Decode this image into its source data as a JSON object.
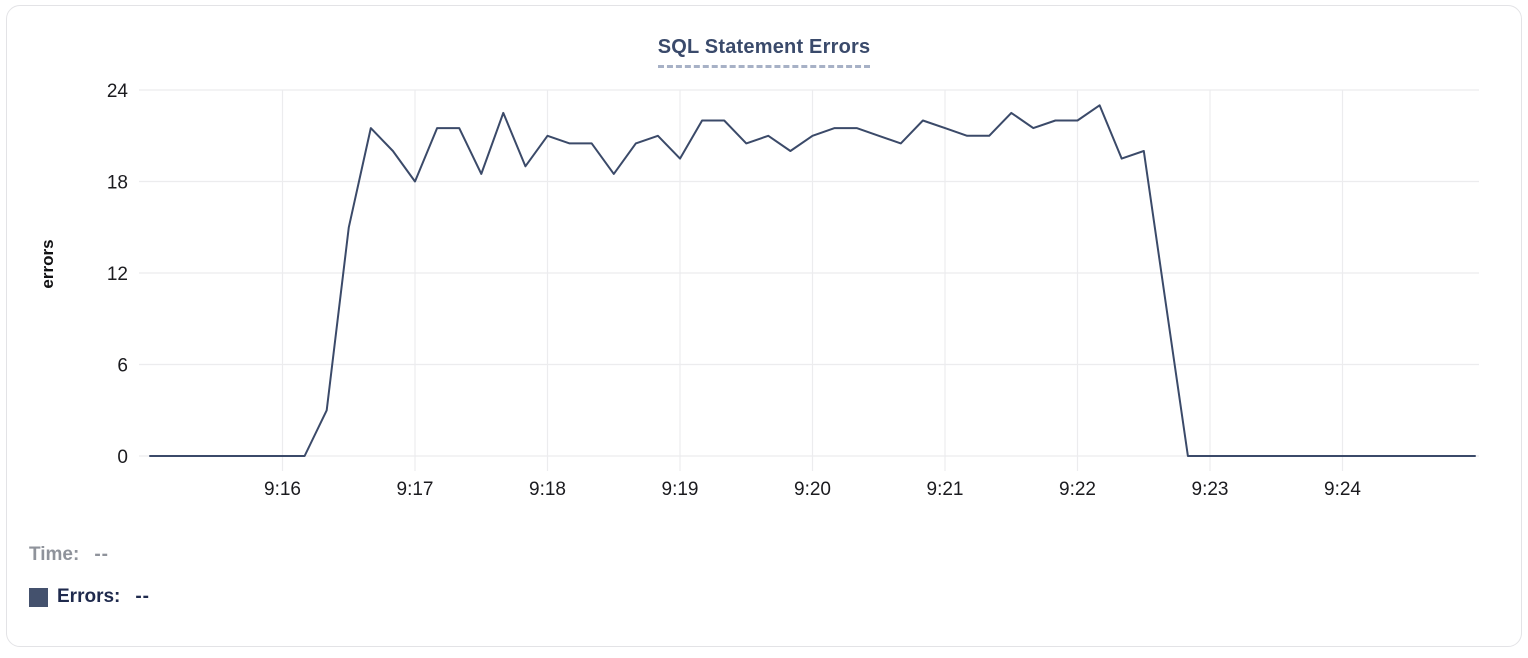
{
  "chart_title": "SQL Statement Errors",
  "colors": {
    "line": "#3b4a69",
    "swatch": "#44516d",
    "title": "#3a4a6b"
  },
  "legend": {
    "time_label": "Time:",
    "time_value": "--",
    "errors_label": "Errors:",
    "errors_value": "--"
  },
  "chart_data": {
    "type": "line",
    "title": "SQL Statement Errors",
    "xlabel": "",
    "ylabel": "errors",
    "ylim": [
      0,
      24
    ],
    "y_ticks": [
      0,
      6,
      12,
      18,
      24
    ],
    "x_ticks": [
      "9:16",
      "9:17",
      "9:18",
      "9:19",
      "9:20",
      "9:21",
      "9:22",
      "9:23",
      "9:24"
    ],
    "grid": true,
    "legend_position": "bottom-left",
    "series": [
      {
        "name": "Errors",
        "start": "9:15:00",
        "interval_seconds": 10,
        "values": [
          0,
          0,
          0,
          0,
          0,
          0,
          0,
          0,
          3,
          15,
          21.5,
          20,
          18,
          21.5,
          21.5,
          18.5,
          22.5,
          19,
          21,
          20.5,
          20.5,
          18.5,
          20.5,
          21,
          19.5,
          22,
          22,
          20.5,
          21,
          20,
          21,
          21.5,
          21.5,
          21,
          20.5,
          22,
          21.5,
          21,
          21,
          22.5,
          21.5,
          22,
          22,
          23,
          19.5,
          20,
          10,
          0,
          0,
          0,
          0,
          0,
          0,
          0,
          0,
          0,
          0,
          0,
          0,
          0,
          0
        ]
      }
    ]
  }
}
